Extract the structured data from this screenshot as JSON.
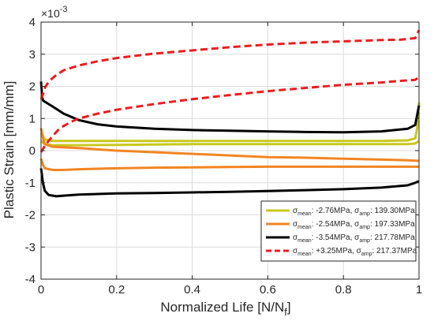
{
  "chart_data": {
    "type": "line",
    "title": "",
    "xlabel": "Normalized Life [N/N",
    "xlabel_sub": "f",
    "xlabel_end": "]",
    "ylabel": "Plastic Strain [mm/mm]",
    "y_exponent": "×10",
    "y_exponent_power": "-3",
    "xlim": [
      0,
      1
    ],
    "ylim": [
      -4,
      4
    ],
    "x_ticks": [
      0,
      0.2,
      0.4,
      0.6,
      0.8,
      1
    ],
    "x_tick_labels": [
      "0",
      "0.2",
      "0.4",
      "0.6",
      "0.8",
      "1"
    ],
    "y_ticks": [
      -4,
      -3,
      -2,
      -1,
      0,
      1,
      2,
      3,
      4
    ],
    "y_tick_labels": [
      "-4",
      "-3",
      "-2",
      "-1",
      "0",
      "1",
      "2",
      "3",
      "4"
    ],
    "grid": true,
    "legend_position": "bottom-right",
    "series": [
      {
        "name": "σmean: -2.76MPa, σamp: 139.30MPa",
        "legend_parts": [
          "σ",
          "mean",
          ": -2.76MPa, σ",
          "amp",
          ": 139.30MPa"
        ],
        "color": "#c8c81e",
        "dash": false,
        "bands": [
          {
            "x": [
              0,
              0.01,
              0.03,
              0.06,
              0.1,
              0.2,
              0.3,
              0.4,
              0.5,
              0.6,
              0.7,
              0.8,
              0.9,
              0.97,
              0.99,
              0.995,
              1.0
            ],
            "y": [
              0.55,
              0.35,
              0.3,
              0.3,
              0.3,
              0.3,
              0.3,
              0.3,
              0.3,
              0.3,
              0.3,
              0.3,
              0.3,
              0.32,
              0.38,
              0.7,
              1.5
            ]
          },
          {
            "x": [
              0,
              0.01,
              0.03,
              0.06,
              0.1,
              0.2,
              0.3,
              0.4,
              0.5,
              0.6,
              0.7,
              0.8,
              0.9,
              0.97,
              0.99,
              1.0
            ],
            "y": [
              0.3,
              0.2,
              0.17,
              0.17,
              0.17,
              0.18,
              0.19,
              0.2,
              0.2,
              0.2,
              0.2,
              0.2,
              0.2,
              0.2,
              0.22,
              0.3
            ]
          }
        ]
      },
      {
        "name": "σmean: -2.54MPa, σamp: 197.33MPa",
        "legend_parts": [
          "σ",
          "mean",
          ": -2.54MPa, σ",
          "amp",
          ": 197.33MPa"
        ],
        "color": "#f28522",
        "dash": false,
        "bands": [
          {
            "x": [
              0,
              0.005,
              0.01,
              0.03,
              0.06,
              0.1,
              0.2,
              0.3,
              0.4,
              0.5,
              0.6,
              0.7,
              0.8,
              0.9,
              0.97,
              1.0
            ],
            "y": [
              0.7,
              0.4,
              0.2,
              0.12,
              0.1,
              0.08,
              0.0,
              -0.05,
              -0.1,
              -0.15,
              -0.2,
              -0.22,
              -0.25,
              -0.28,
              -0.3,
              -0.32
            ]
          },
          {
            "x": [
              0,
              0.005,
              0.01,
              0.03,
              0.06,
              0.1,
              0.2,
              0.3,
              0.4,
              0.5,
              0.6,
              0.7,
              0.8,
              0.9,
              0.97,
              1.0
            ],
            "y": [
              -0.25,
              -0.45,
              -0.55,
              -0.6,
              -0.6,
              -0.58,
              -0.55,
              -0.53,
              -0.52,
              -0.51,
              -0.5,
              -0.5,
              -0.5,
              -0.5,
              -0.5,
              -0.5
            ]
          }
        ]
      },
      {
        "name": "σmean: -3.54MPa, σamp: 217.78MPa",
        "legend_parts": [
          "σ",
          "mean",
          ": -3.54MPa, σ",
          "amp",
          ": 217.78MPa"
        ],
        "color": "#000000",
        "dash": false,
        "bands": [
          {
            "x": [
              0,
              0.003,
              0.006,
              0.02,
              0.04,
              0.06,
              0.1,
              0.15,
              0.2,
              0.3,
              0.4,
              0.5,
              0.6,
              0.7,
              0.8,
              0.9,
              0.97,
              0.99,
              0.995,
              1.0
            ],
            "y": [
              2.15,
              1.65,
              1.55,
              1.45,
              1.3,
              1.15,
              0.95,
              0.82,
              0.75,
              0.68,
              0.64,
              0.62,
              0.6,
              0.58,
              0.57,
              0.6,
              0.68,
              0.8,
              1.1,
              1.4
            ]
          },
          {
            "x": [
              0,
              0.005,
              0.01,
              0.02,
              0.04,
              0.06,
              0.1,
              0.2,
              0.3,
              0.4,
              0.5,
              0.6,
              0.7,
              0.8,
              0.9,
              0.97,
              0.99,
              1.0
            ],
            "y": [
              -0.55,
              -1.0,
              -1.25,
              -1.38,
              -1.42,
              -1.4,
              -1.37,
              -1.33,
              -1.32,
              -1.3,
              -1.28,
              -1.26,
              -1.23,
              -1.2,
              -1.15,
              -1.08,
              -1.0,
              -0.95
            ]
          }
        ]
      },
      {
        "name": "σmean: +3.25MPa, σamp: 217.37MPa",
        "legend_parts": [
          "σ",
          "mean",
          ": +3.25MPa, σ",
          "amp",
          ": 217.37MPa"
        ],
        "color": "#ee1c1c",
        "dash": true,
        "bands": [
          {
            "x": [
              0,
              0.005,
              0.01,
              0.02,
              0.04,
              0.06,
              0.1,
              0.15,
              0.2,
              0.3,
              0.4,
              0.5,
              0.6,
              0.7,
              0.8,
              0.9,
              0.95,
              0.99,
              1.0
            ],
            "y": [
              1.6,
              1.75,
              1.95,
              2.15,
              2.35,
              2.5,
              2.65,
              2.78,
              2.88,
              3.02,
              3.12,
              3.22,
              3.3,
              3.36,
              3.4,
              3.44,
              3.45,
              3.5,
              3.75
            ]
          },
          {
            "x": [
              0,
              0.005,
              0.01,
              0.02,
              0.03,
              0.05,
              0.08,
              0.1,
              0.15,
              0.2,
              0.3,
              0.4,
              0.5,
              0.6,
              0.7,
              0.8,
              0.9,
              0.95,
              0.99,
              1.0
            ],
            "y": [
              -0.05,
              0.05,
              0.15,
              0.3,
              0.45,
              0.7,
              0.9,
              1.0,
              1.15,
              1.27,
              1.45,
              1.6,
              1.73,
              1.85,
              1.95,
              2.05,
              2.12,
              2.17,
              2.2,
              2.3
            ]
          }
        ]
      }
    ]
  }
}
